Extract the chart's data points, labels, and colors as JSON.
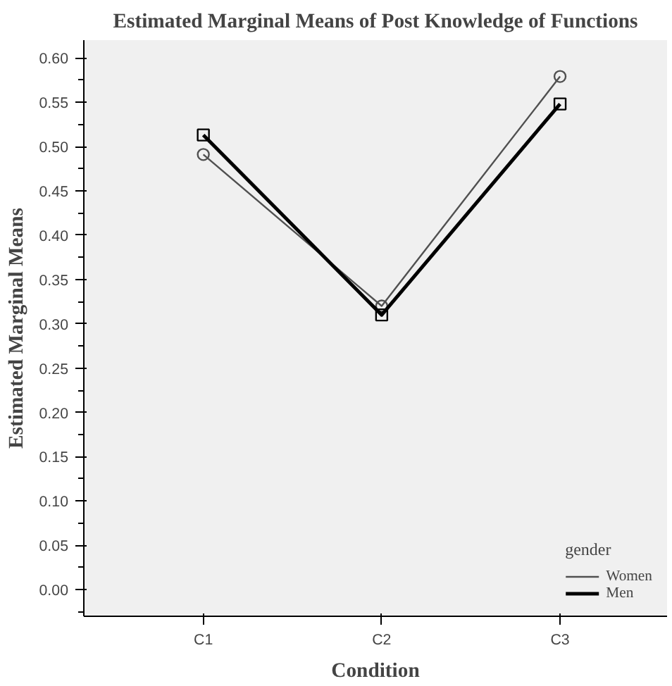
{
  "chart_data": {
    "type": "line",
    "title": "Estimated Marginal Means of Post Knowledge of Functions",
    "xlabel": "Condition",
    "ylabel": "Estimated Marginal Means",
    "legend_title": "gender",
    "categories": [
      "C1",
      "C2",
      "C3"
    ],
    "series": [
      {
        "name": "Women",
        "color": "#505050",
        "marker": "circle",
        "values": [
          0.491,
          0.32,
          0.579
        ]
      },
      {
        "name": "Men",
        "color": "#000000",
        "marker": "square",
        "values": [
          0.513,
          0.31,
          0.548
        ]
      }
    ],
    "ylim": [
      -0.03,
      0.62
    ],
    "yticks": [
      {
        "value": 0,
        "label": "0.00"
      },
      {
        "value": 0.05,
        "label": "0.05"
      },
      {
        "value": 0.1,
        "label": "0.10"
      },
      {
        "value": 0.15,
        "label": "0.15"
      },
      {
        "value": 0.2,
        "label": "0.20"
      },
      {
        "value": 0.25,
        "label": "0.25"
      },
      {
        "value": 0.3,
        "label": "0.30"
      },
      {
        "value": 0.35,
        "label": "0.35"
      },
      {
        "value": 0.4,
        "label": "0.40"
      },
      {
        "value": 0.45,
        "label": "0.45"
      },
      {
        "value": 0.5,
        "label": "0.50"
      },
      {
        "value": 0.55,
        "label": "0.55"
      },
      {
        "value": 0.6,
        "label": "0.60"
      }
    ],
    "grid": false,
    "legend": "bottom right"
  }
}
